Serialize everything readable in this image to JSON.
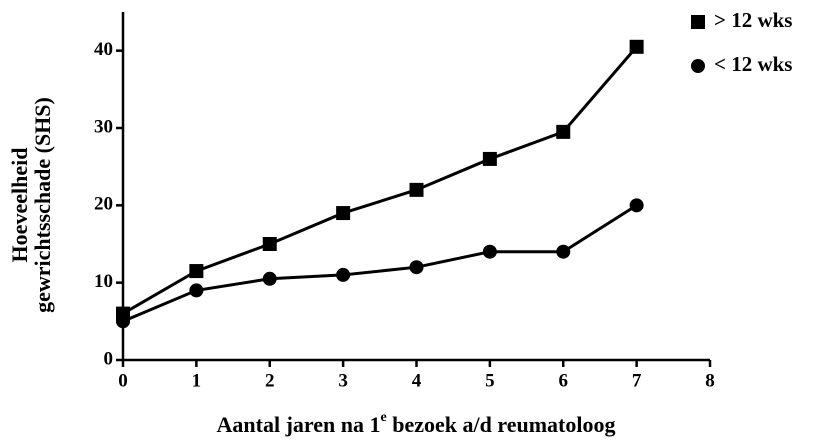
{
  "chart_data": {
    "type": "line",
    "xlabel": [
      "Aantal jaren na 1",
      "e",
      " bezoek a/d reumatoloog"
    ],
    "ylabel": [
      "Hoeveelheid",
      "gewrichtsschade (SHS)"
    ],
    "x": [
      0,
      1,
      2,
      3,
      4,
      5,
      6,
      7
    ],
    "series": [
      {
        "name": "> 12 wks",
        "color": "#000000",
        "marker": "square",
        "values": [
          6,
          11.5,
          15,
          19,
          22,
          26,
          29.5,
          40.5
        ]
      },
      {
        "name": "< 12 wks",
        "color": "#000000",
        "marker": "circle",
        "values": [
          5,
          9,
          10.5,
          11,
          12,
          14,
          14,
          20
        ]
      }
    ],
    "xlim": [
      0,
      8
    ],
    "xticks": [
      0,
      1,
      2,
      3,
      4,
      5,
      6,
      7,
      8
    ],
    "ylim": [
      0,
      45
    ],
    "yticks": [
      0,
      10,
      20,
      30,
      40
    ],
    "legend": "top right",
    "grid": false
  }
}
